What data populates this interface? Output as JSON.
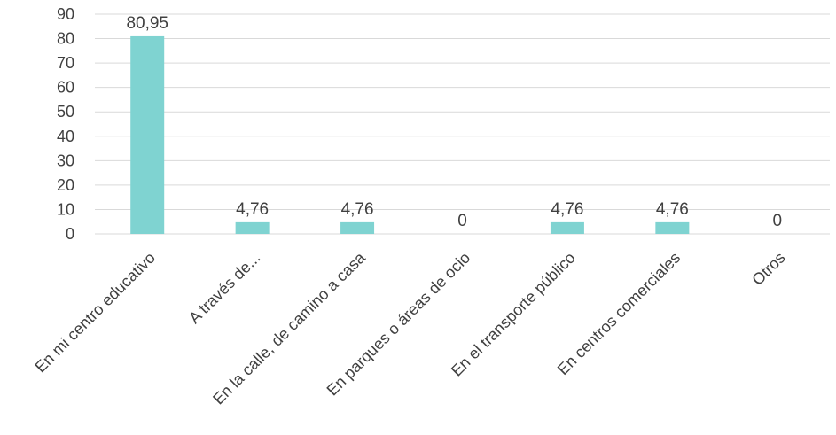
{
  "chart_data": {
    "type": "bar",
    "categories": [
      "En mi centro educativo",
      "A través de...",
      "En la calle, de camino a casa",
      "En parques o áreas de ocio",
      "En el transporte público",
      "En centros comerciales",
      "Otros"
    ],
    "values": [
      80.95,
      4.76,
      4.76,
      0,
      4.76,
      4.76,
      0
    ],
    "data_labels": [
      "80,95",
      "4,76",
      "4,76",
      "0",
      "4,76",
      "4,76",
      "0"
    ],
    "y_ticks": [
      "0",
      "10",
      "20",
      "30",
      "40",
      "50",
      "60",
      "70",
      "80",
      "90"
    ],
    "ylim": [
      0,
      90
    ],
    "grid": true,
    "legend": "none",
    "bar_color": "#7fd3d1",
    "grid_color": "#d9d9d9",
    "text_color": "#404040"
  }
}
